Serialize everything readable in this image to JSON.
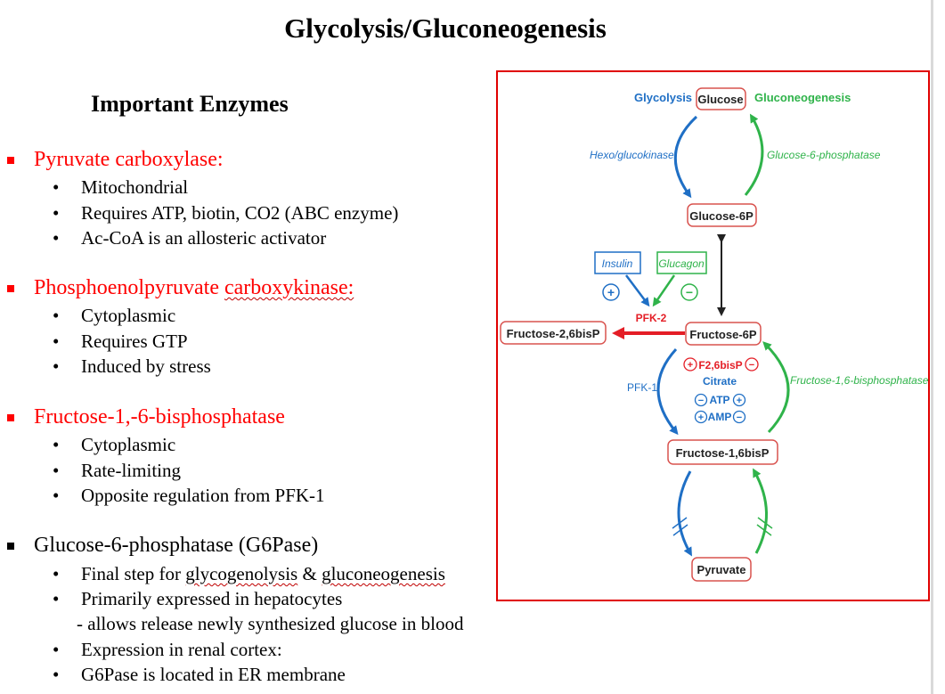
{
  "title": "Glycolysis/Gluconeogenesis",
  "heading": "Important Enzymes",
  "enzymes": [
    {
      "name_parts": [
        "Pyruvate carboxylase:"
      ],
      "color": "#ff0000",
      "bullet_color": "#ff0000",
      "items": [
        "Mitochondrial",
        "Requires ATP, biotin, CO2 (ABC enzyme)",
        "Ac-CoA is an allosteric activator"
      ]
    },
    {
      "name_parts": [
        "Phosphoenolpyruvate ",
        "carboxykinase:"
      ],
      "color": "#ff0000",
      "bullet_color": "#ff0000",
      "items": [
        "Cytoplasmic",
        "Requires GTP",
        "Induced by stress"
      ]
    },
    {
      "name_parts": [
        "Fructose-1,-6-bisphosphatase"
      ],
      "color": "#ff0000",
      "bullet_color": "#ff0000",
      "items": [
        "Cytoplasmic",
        "Rate-limiting",
        "Opposite regulation from PFK-1"
      ]
    },
    {
      "name_parts": [
        "Glucose-6-phosphatase (G6Pase)"
      ],
      "color": "#000000",
      "bullet_color": "#000000",
      "items": [
        "Final step for glycogenolysis & gluconeogenesis",
        "Primarily expressed in hepatocytes",
        "- allows release newly synthesized glucose in blood",
        "Expression in renal cortex:",
        "G6Pase is located in ER membrane"
      ]
    }
  ],
  "diagram": {
    "labels": {
      "glycolysis": "Glycolysis",
      "glucose": "Glucose",
      "gluconeogenesis": "Gluconeogenesis",
      "hexo": "Hexo/glucokinase",
      "g6pase": "Glucose-6-phosphatase",
      "glucose6p": "Glucose-6P",
      "insulin": "Insulin",
      "glucagon": "Glucagon",
      "plus": "+",
      "minus": "−",
      "pfk2": "PFK-2",
      "fructose26bisp": "Fructose-2,6bisP",
      "fructose6p": "Fructose-6P",
      "pfk1": "PFK-1",
      "f26bisp": "F2,6bisP",
      "citrate": "Citrate",
      "atp": "ATP",
      "amp": "AMP",
      "fbpase": "Fructose-1,6-bisphosphatase",
      "fructose16bisp": "Fructose-1,6bisP",
      "pyruvate": "Pyruvate"
    },
    "colors": {
      "blue": "#1f6fc5",
      "green": "#2fb34a",
      "red": "#e41e26",
      "dark": "#222222",
      "box_border": "#d9534f"
    }
  }
}
